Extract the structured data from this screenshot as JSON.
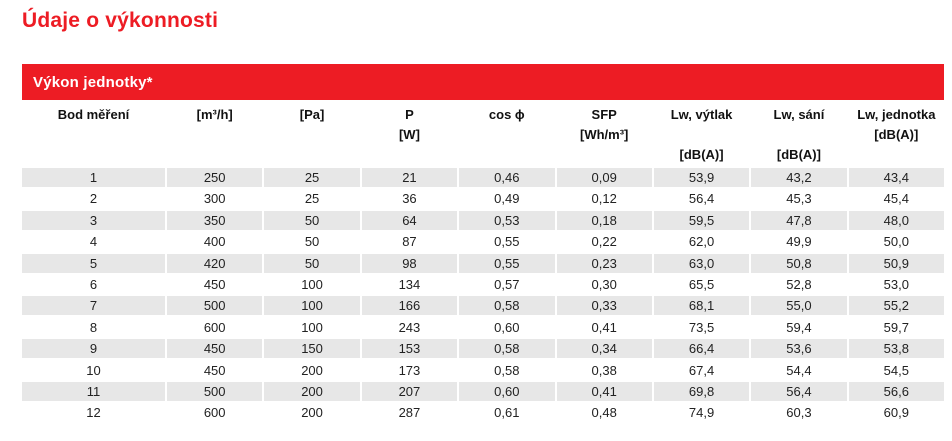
{
  "page_title": "Údaje o výkonnosti",
  "colors": {
    "accent_red": "#ed1c24",
    "row_alt_background": "#e7e7e7",
    "header_text": "#111111",
    "body_text": "#222222"
  },
  "section": {
    "title": "Výkon jednotky*"
  },
  "table": {
    "columns": [
      {
        "id": "bod-mereni",
        "lines": [
          "Bod měření",
          "",
          ""
        ]
      },
      {
        "id": "prutok",
        "lines": [
          "[m³/h]",
          "",
          ""
        ]
      },
      {
        "id": "tlak",
        "lines": [
          "[Pa]",
          "",
          ""
        ]
      },
      {
        "id": "prikon",
        "lines": [
          "P",
          "[W]",
          ""
        ]
      },
      {
        "id": "cos-phi",
        "lines": [
          "cos ϕ",
          "",
          ""
        ]
      },
      {
        "id": "sfp",
        "lines": [
          "SFP",
          "[Wh/m³]",
          ""
        ]
      },
      {
        "id": "lw-vytlak",
        "lines": [
          "Lw, výtlak",
          "",
          "[dB(A)]"
        ]
      },
      {
        "id": "lw-sani",
        "lines": [
          "Lw, sání",
          "",
          "[dB(A)]"
        ]
      },
      {
        "id": "lw-jednotka",
        "lines": [
          "Lw, jednotka",
          "[dB(A)]",
          ""
        ]
      }
    ],
    "rows": [
      [
        "1",
        "250",
        "25",
        "21",
        "0,46",
        "0,09",
        "53,9",
        "43,2",
        "43,4"
      ],
      [
        "2",
        "300",
        "25",
        "36",
        "0,49",
        "0,12",
        "56,4",
        "45,3",
        "45,4"
      ],
      [
        "3",
        "350",
        "50",
        "64",
        "0,53",
        "0,18",
        "59,5",
        "47,8",
        "48,0"
      ],
      [
        "4",
        "400",
        "50",
        "87",
        "0,55",
        "0,22",
        "62,0",
        "49,9",
        "50,0"
      ],
      [
        "5",
        "420",
        "50",
        "98",
        "0,55",
        "0,23",
        "63,0",
        "50,8",
        "50,9"
      ],
      [
        "6",
        "450",
        "100",
        "134",
        "0,57",
        "0,30",
        "65,5",
        "52,8",
        "53,0"
      ],
      [
        "7",
        "500",
        "100",
        "166",
        "0,58",
        "0,33",
        "68,1",
        "55,0",
        "55,2"
      ],
      [
        "8",
        "600",
        "100",
        "243",
        "0,60",
        "0,41",
        "73,5",
        "59,4",
        "59,7"
      ],
      [
        "9",
        "450",
        "150",
        "153",
        "0,58",
        "0,34",
        "66,4",
        "53,6",
        "53,8"
      ],
      [
        "10",
        "450",
        "200",
        "173",
        "0,58",
        "0,38",
        "67,4",
        "54,4",
        "54,5"
      ],
      [
        "11",
        "500",
        "200",
        "207",
        "0,60",
        "0,41",
        "69,8",
        "56,4",
        "56,6"
      ],
      [
        "12",
        "600",
        "200",
        "287",
        "0,61",
        "0,48",
        "74,9",
        "60,3",
        "60,9"
      ]
    ]
  }
}
